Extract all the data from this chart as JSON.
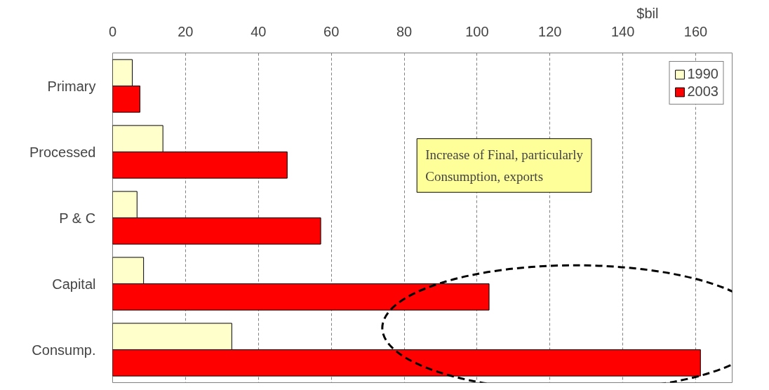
{
  "chart_data": {
    "type": "bar",
    "orientation": "horizontal",
    "xlabel": "$bil",
    "categories": [
      "Primary",
      "Processed",
      "P & C",
      "Capital",
      "Consump."
    ],
    "series": [
      {
        "name": "1990",
        "color": "#ffffcc",
        "values": [
          5.4,
          13.8,
          6.7,
          8.5,
          32.7
        ]
      },
      {
        "name": "2003",
        "color": "#ff0000",
        "values": [
          7.5,
          47.9,
          57.1,
          103.3,
          161.3
        ]
      }
    ],
    "xlim": [
      0,
      170
    ],
    "xticks": [
      0,
      20,
      40,
      60,
      80,
      100,
      120,
      140,
      160
    ],
    "grid": "x",
    "legend": "top right",
    "annotations": [
      "Increase of Final, particularly\nConsumption, exports"
    ]
  }
}
